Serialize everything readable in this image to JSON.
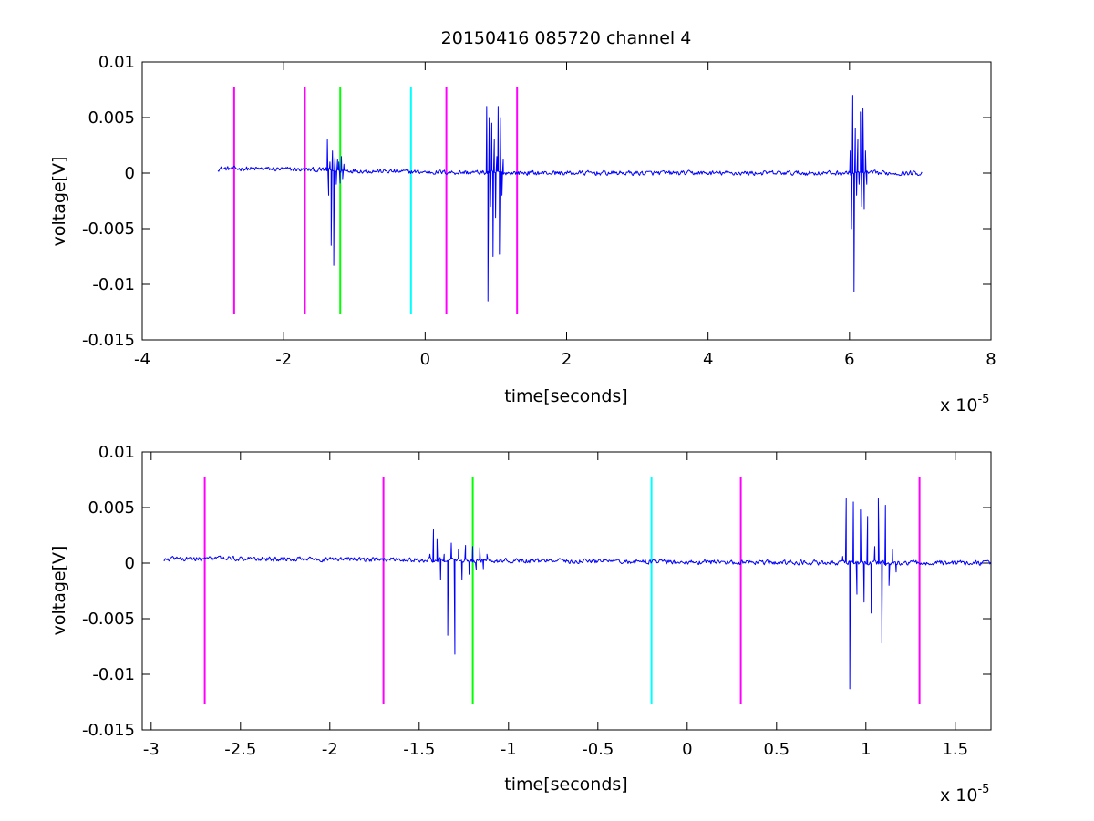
{
  "figure": {
    "title": "20150416 085720 channel 4"
  },
  "colors": {
    "signal": "#0000ff",
    "magenta": "#ff00ff",
    "green": "#00ff00",
    "cyan": "#00ffff",
    "axes": "#000000"
  },
  "chart_data": [
    {
      "type": "line",
      "title": "20150416 085720 channel 4",
      "xlabel": "time[seconds]",
      "ylabel": "voltage[V]",
      "x_multiplier_label": "x 10",
      "x_multiplier_exponent": "-5",
      "xlim": [
        -4,
        8
      ],
      "ylim": [
        -0.015,
        0.01
      ],
      "xticks": [
        -4,
        -2,
        0,
        2,
        4,
        6,
        8
      ],
      "xtick_labels": [
        "-4",
        "-2",
        "0",
        "2",
        "4",
        "6",
        "8"
      ],
      "yticks": [
        -0.015,
        -0.01,
        -0.005,
        0,
        0.005,
        0.01
      ],
      "ytick_labels": [
        "-0.015",
        "-0.01",
        "-0.005",
        "0",
        "0.005",
        "0.01"
      ],
      "grid": false,
      "series": [
        {
          "color": "#0000ff",
          "x_range": [
            -2.93,
            7.03
          ],
          "baseline_noise": 0.0003,
          "bursts": [
            {
              "x": -1.4,
              "values": [
                0.0005,
                0.003,
                -0.002,
                0.001,
                -0.0065,
                0.002,
                -0.0083,
                0.0015,
                -0.001,
                0.0012,
                0.001,
                -0.0009,
                0.0015,
                -0.0005,
                0.0008
              ]
            },
            {
              "x": 0.87,
              "values": [
                0.006,
                -0.0115,
                0.005,
                -0.003,
                0.0045,
                -0.0075,
                0.003,
                -0.004,
                0.0015,
                0.006,
                -0.0073,
                0.005,
                -0.002,
                0.0012
              ]
            },
            {
              "x": 6.01,
              "values": [
                0.002,
                -0.005,
                0.007,
                -0.0107,
                0.004,
                -0.002,
                0.003,
                -0.001,
                0.0055,
                -0.003,
                0.0058,
                -0.0032,
                0.002,
                -0.001
              ]
            }
          ]
        }
      ],
      "vertical_markers": [
        {
          "x": -2.7,
          "color": "#ff00ff"
        },
        {
          "x": -1.7,
          "color": "#ff00ff"
        },
        {
          "x": -1.2,
          "color": "#00ff00"
        },
        {
          "x": -0.2,
          "color": "#00ffff"
        },
        {
          "x": 0.3,
          "color": "#ff00ff"
        },
        {
          "x": 1.3,
          "color": "#ff00ff"
        }
      ],
      "marker_y_range": [
        -0.0127,
        0.0077
      ]
    },
    {
      "type": "line",
      "xlabel": "time[seconds]",
      "ylabel": "voltage[V]",
      "x_multiplier_label": "x 10",
      "x_multiplier_exponent": "-5",
      "xlim": [
        -3.05,
        1.7
      ],
      "ylim": [
        -0.015,
        0.01
      ],
      "xticks": [
        -3,
        -2.5,
        -2,
        -1.5,
        -1,
        -0.5,
        0,
        0.5,
        1,
        1.5
      ],
      "xtick_labels": [
        "-3",
        "-2.5",
        "-2",
        "-1.5",
        "-1",
        "-0.5",
        "0",
        "0.5",
        "1",
        "1.5"
      ],
      "yticks": [
        -0.015,
        -0.01,
        -0.005,
        0,
        0.005,
        0.01
      ],
      "ytick_labels": [
        "-0.015",
        "-0.01",
        "-0.005",
        "0",
        "0.005",
        "0.01"
      ],
      "grid": false,
      "series": [
        {
          "color": "#0000ff",
          "x_range": [
            -2.93,
            1.7
          ],
          "baseline_noise": 0.0003,
          "bursts": [
            {
              "x": -1.44,
              "values": [
                0.0008,
                0.003,
                0.0022,
                -0.0015,
                0.0008,
                -0.0065,
                0.0018,
                -0.0082,
                0.0012,
                -0.0015,
                0.0016,
                -0.001,
                0.0015,
                -0.0006,
                0.0014,
                -0.0005,
                0.0008
              ]
            },
            {
              "x": 0.87,
              "values": [
                0.0006,
                0.0058,
                -0.0113,
                0.0055,
                -0.0028,
                0.0048,
                -0.0035,
                0.0042,
                -0.0045,
                0.0015,
                0.0058,
                -0.0072,
                0.0052,
                -0.002,
                0.0012,
                -0.0008
              ]
            }
          ]
        }
      ],
      "vertical_markers": [
        {
          "x": -2.7,
          "color": "#ff00ff"
        },
        {
          "x": -1.7,
          "color": "#ff00ff"
        },
        {
          "x": -1.2,
          "color": "#00ff00"
        },
        {
          "x": -0.2,
          "color": "#00ffff"
        },
        {
          "x": 0.3,
          "color": "#ff00ff"
        },
        {
          "x": 1.3,
          "color": "#ff00ff"
        }
      ],
      "marker_y_range": [
        -0.0127,
        0.0077
      ]
    }
  ]
}
